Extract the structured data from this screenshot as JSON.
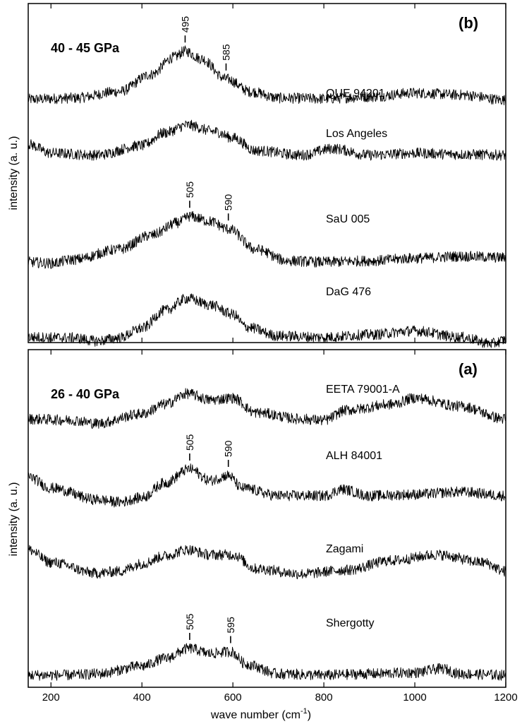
{
  "chart_data": [
    {
      "type": "line",
      "panel_label": "(b)",
      "pressure": "40 - 45 GPa",
      "ylabel": "intensity (a. u.)",
      "xlim": [
        150,
        1200
      ],
      "x_ticks": [
        200,
        400,
        600,
        800,
        1000,
        1200
      ],
      "series": [
        {
          "name": "QUE 94201",
          "peaks": [
            495,
            585
          ],
          "points": [
            [
              150,
              0.16
            ],
            [
              250,
              0.18
            ],
            [
              350,
              0.28
            ],
            [
              420,
              0.55
            ],
            [
              470,
              0.82
            ],
            [
              495,
              0.92
            ],
            [
              530,
              0.8
            ],
            [
              585,
              0.48
            ],
            [
              640,
              0.28
            ],
            [
              700,
              0.18
            ],
            [
              800,
              0.17
            ],
            [
              900,
              0.2
            ],
            [
              1000,
              0.26
            ],
            [
              1100,
              0.23
            ],
            [
              1200,
              0.15
            ]
          ]
        },
        {
          "name": "Los Angeles",
          "peaks": [],
          "points": [
            [
              150,
              0.62
            ],
            [
              200,
              0.48
            ],
            [
              300,
              0.45
            ],
            [
              400,
              0.6
            ],
            [
              450,
              0.8
            ],
            [
              500,
              0.92
            ],
            [
              560,
              0.82
            ],
            [
              600,
              0.72
            ],
            [
              650,
              0.52
            ],
            [
              750,
              0.45
            ],
            [
              820,
              0.55
            ],
            [
              900,
              0.45
            ],
            [
              1000,
              0.48
            ],
            [
              1100,
              0.46
            ],
            [
              1200,
              0.45
            ]
          ]
        },
        {
          "name": "SaU 005",
          "peaks": [
            505,
            590
          ],
          "points": [
            [
              150,
              0.1
            ],
            [
              200,
              0.08
            ],
            [
              250,
              0.14
            ],
            [
              350,
              0.3
            ],
            [
              420,
              0.52
            ],
            [
              480,
              0.72
            ],
            [
              505,
              0.82
            ],
            [
              550,
              0.74
            ],
            [
              590,
              0.62
            ],
            [
              650,
              0.3
            ],
            [
              720,
              0.12
            ],
            [
              800,
              0.1
            ],
            [
              900,
              0.12
            ],
            [
              1000,
              0.16
            ],
            [
              1100,
              0.19
            ],
            [
              1200,
              0.17
            ]
          ]
        },
        {
          "name": "DaG 476",
          "peaks": [],
          "points": [
            [
              150,
              0.14
            ],
            [
              250,
              0.13
            ],
            [
              300,
              0.08
            ],
            [
              350,
              0.13
            ],
            [
              400,
              0.28
            ],
            [
              450,
              0.56
            ],
            [
              500,
              0.75
            ],
            [
              550,
              0.65
            ],
            [
              600,
              0.5
            ],
            [
              630,
              0.3
            ],
            [
              700,
              0.16
            ],
            [
              800,
              0.14
            ],
            [
              900,
              0.18
            ],
            [
              1000,
              0.24
            ],
            [
              1100,
              0.14
            ],
            [
              1170,
              0.04
            ],
            [
              1200,
              0.1
            ]
          ]
        }
      ]
    },
    {
      "type": "line",
      "panel_label": "(a)",
      "pressure": "26 - 40 GPa",
      "ylabel": "intensity (a. u.)",
      "xlabel": "wave number (cm",
      "xlabel_sup": "-1",
      "xlabel_end": ")",
      "xlim": [
        150,
        1200
      ],
      "x_ticks": [
        200,
        400,
        600,
        800,
        1000,
        1200
      ],
      "x_tick_labels": [
        "200",
        "400",
        "600",
        "800",
        "1000",
        "1200"
      ],
      "series": [
        {
          "name": "EETA 79001-A",
          "peaks": [],
          "points": [
            [
              150,
              0.52
            ],
            [
              250,
              0.5
            ],
            [
              300,
              0.45
            ],
            [
              400,
              0.6
            ],
            [
              450,
              0.75
            ],
            [
              500,
              0.92
            ],
            [
              550,
              0.82
            ],
            [
              600,
              0.85
            ],
            [
              650,
              0.62
            ],
            [
              750,
              0.52
            ],
            [
              800,
              0.5
            ],
            [
              850,
              0.66
            ],
            [
              950,
              0.75
            ],
            [
              1000,
              0.85
            ],
            [
              1100,
              0.72
            ],
            [
              1200,
              0.52
            ]
          ]
        },
        {
          "name": "ALH 84001",
          "peaks": [
            505,
            590
          ],
          "points": [
            [
              150,
              0.78
            ],
            [
              200,
              0.6
            ],
            [
              300,
              0.42
            ],
            [
              350,
              0.38
            ],
            [
              400,
              0.45
            ],
            [
              450,
              0.68
            ],
            [
              505,
              0.9
            ],
            [
              550,
              0.72
            ],
            [
              590,
              0.8
            ],
            [
              620,
              0.6
            ],
            [
              700,
              0.48
            ],
            [
              800,
              0.48
            ],
            [
              840,
              0.58
            ],
            [
              900,
              0.48
            ],
            [
              1000,
              0.5
            ],
            [
              1100,
              0.54
            ],
            [
              1200,
              0.48
            ]
          ]
        },
        {
          "name": "Zagami",
          "peaks": [],
          "points": [
            [
              150,
              0.82
            ],
            [
              200,
              0.62
            ],
            [
              300,
              0.45
            ],
            [
              350,
              0.48
            ],
            [
              400,
              0.6
            ],
            [
              450,
              0.72
            ],
            [
              500,
              0.82
            ],
            [
              550,
              0.74
            ],
            [
              600,
              0.74
            ],
            [
              650,
              0.52
            ],
            [
              750,
              0.44
            ],
            [
              850,
              0.5
            ],
            [
              950,
              0.65
            ],
            [
              1050,
              0.74
            ],
            [
              1150,
              0.62
            ],
            [
              1200,
              0.48
            ]
          ]
        },
        {
          "name": "Shergotty",
          "peaks": [
            505,
            595
          ],
          "points": [
            [
              150,
              0.18
            ],
            [
              250,
              0.18
            ],
            [
              300,
              0.2
            ],
            [
              400,
              0.32
            ],
            [
              450,
              0.44
            ],
            [
              505,
              0.6
            ],
            [
              550,
              0.52
            ],
            [
              595,
              0.55
            ],
            [
              630,
              0.35
            ],
            [
              700,
              0.2
            ],
            [
              800,
              0.18
            ],
            [
              900,
              0.2
            ],
            [
              1000,
              0.22
            ],
            [
              1060,
              0.28
            ],
            [
              1100,
              0.2
            ],
            [
              1200,
              0.18
            ]
          ]
        }
      ]
    }
  ]
}
